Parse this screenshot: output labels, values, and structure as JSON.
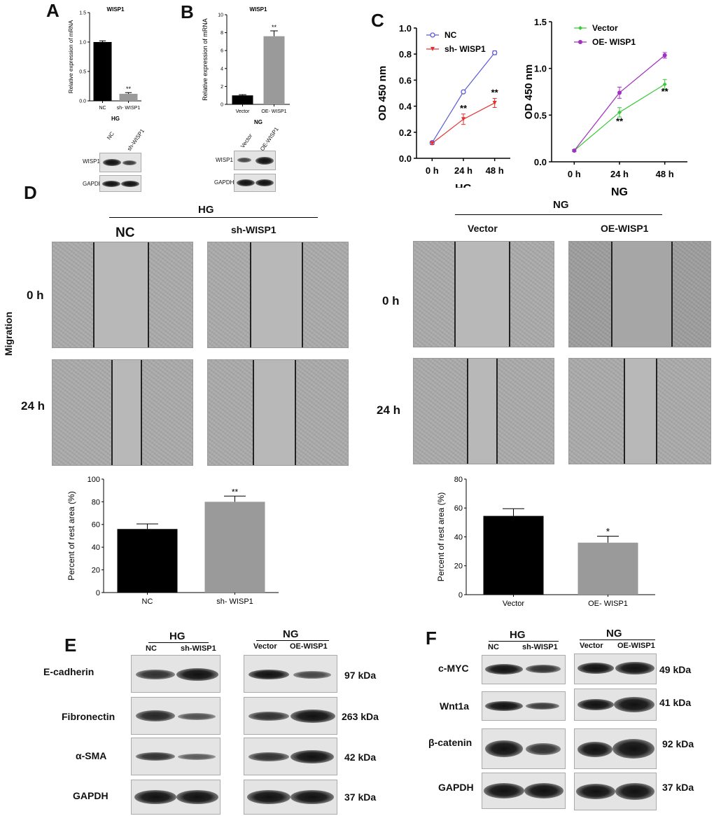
{
  "panels": {
    "A": {
      "label": "A",
      "title": "WISP1",
      "ylabel": "Relative expression of mRNA",
      "xgroup": "HG",
      "sig": "**",
      "blot_lanes": [
        "NC",
        "sh-WISP1"
      ],
      "blot_rows": [
        "WISP1",
        "GAPDH"
      ]
    },
    "B": {
      "label": "B",
      "title": "WISP1",
      "ylabel": "Relative expression of mRNA",
      "xgroup": "NG",
      "sig": "**",
      "blot_lanes": [
        "Vector",
        "OE-WISP1"
      ],
      "blot_rows": [
        "WISP1",
        "GAPDH"
      ]
    },
    "C": {
      "label": "C",
      "ylabel": "OD 450 nm",
      "left_group": "HG",
      "right_group": "NG",
      "sig": "**"
    },
    "D": {
      "label": "D",
      "side_label": "Migration",
      "hg": "HG",
      "ng": "NG",
      "col_headers": [
        "NC",
        "sh-WISP1",
        "Vector",
        "OE-WISP1"
      ],
      "rows": [
        "0 h",
        "24 h"
      ],
      "ylabel": "Percent of  rest area (%)",
      "sig_left": "**",
      "sig_right": "*"
    },
    "E": {
      "label": "E",
      "hg": "HG",
      "ng": "NG",
      "lanes_hg": [
        "NC",
        "sh-WISP1"
      ],
      "lanes_ng": [
        "Vector",
        "OE-WISP1"
      ],
      "rows": [
        "E-cadherin",
        "Fibronectin",
        "α-SMA",
        "GAPDH"
      ],
      "kda": [
        "97 kDa",
        "263 kDa",
        "42 kDa",
        "37 kDa"
      ]
    },
    "F": {
      "label": "F",
      "hg": "HG",
      "ng": "NG",
      "lanes_hg": [
        "NC",
        "sh-WISP1"
      ],
      "lanes_ng": [
        "Vector",
        "OE-WISP1"
      ],
      "rows": [
        "c-MYC",
        "Wnt1a",
        "β-catenin",
        "GAPDH"
      ],
      "kda": [
        "49 kDa",
        "41 kDa",
        "92 kDa",
        "37 kDa"
      ]
    }
  },
  "chart_data": [
    {
      "id": "A",
      "type": "bar",
      "categories": [
        "NC",
        "sh- WISP1"
      ],
      "values": [
        1.0,
        0.12
      ],
      "errors": [
        0.02,
        0.02
      ],
      "ylim": [
        0,
        1.5
      ],
      "yticks": [
        "0.0",
        "0.5",
        "1.0",
        "1.5"
      ],
      "colors": [
        "#000000",
        "#9a9a9a"
      ]
    },
    {
      "id": "B",
      "type": "bar",
      "categories": [
        "Vector",
        "OE- WISP1"
      ],
      "values": [
        1.0,
        7.6
      ],
      "errors": [
        0.08,
        0.6
      ],
      "ylim": [
        0,
        10
      ],
      "yticks": [
        "0",
        "2",
        "4",
        "6",
        "8",
        "10"
      ],
      "colors": [
        "#000000",
        "#9a9a9a"
      ]
    },
    {
      "id": "C-left",
      "type": "line",
      "x": [
        "0 h",
        "24 h",
        "48 h"
      ],
      "ylim": [
        0,
        1.0
      ],
      "yticks": [
        "0.0",
        "0.2",
        "0.4",
        "0.6",
        "0.8",
        "1.0"
      ],
      "series": [
        {
          "name": "NC",
          "values": [
            0.12,
            0.51,
            0.81
          ],
          "errors": [
            0.01,
            0.01,
            0.015
          ],
          "color": "#5a5ad6",
          "marker": "circle-open"
        },
        {
          "name": "sh- WISP1",
          "values": [
            0.115,
            0.3,
            0.425
          ],
          "errors": [
            0.01,
            0.04,
            0.035
          ],
          "color": "#e53030",
          "marker": "triangle-down"
        }
      ]
    },
    {
      "id": "C-right",
      "type": "line",
      "x": [
        "0 h",
        "24 h",
        "48 h"
      ],
      "ylim": [
        0,
        1.5
      ],
      "yticks": [
        "0.0",
        "0.5",
        "1.0",
        "1.5"
      ],
      "series": [
        {
          "name": "Vector",
          "values": [
            0.12,
            0.53,
            0.83
          ],
          "errors": [
            0.01,
            0.05,
            0.05
          ],
          "color": "#3ac93a",
          "marker": "diamond"
        },
        {
          "name": "OE- WISP1",
          "values": [
            0.12,
            0.74,
            1.14
          ],
          "errors": [
            0.01,
            0.06,
            0.03
          ],
          "color": "#a030c0",
          "marker": "circle"
        }
      ]
    },
    {
      "id": "D-left",
      "type": "bar",
      "categories": [
        "NC",
        "sh- WISP1"
      ],
      "values": [
        56,
        80
      ],
      "errors": [
        4.5,
        5
      ],
      "ylim": [
        0,
        100
      ],
      "yticks": [
        "0",
        "20",
        "40",
        "60",
        "80",
        "100"
      ],
      "colors": [
        "#000000",
        "#9a9a9a"
      ]
    },
    {
      "id": "D-right",
      "type": "bar",
      "categories": [
        "Vector",
        "OE- WISP1"
      ],
      "values": [
        54.5,
        36
      ],
      "errors": [
        5,
        4.5
      ],
      "ylim": [
        0,
        80
      ],
      "yticks": [
        "0",
        "20",
        "40",
        "60",
        "80"
      ],
      "colors": [
        "#000000",
        "#9a9a9a"
      ]
    }
  ]
}
